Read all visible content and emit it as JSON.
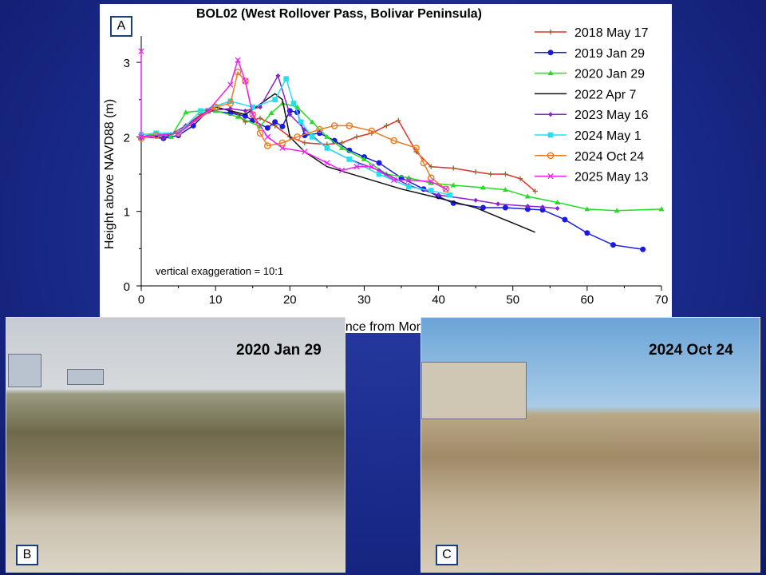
{
  "panels": {
    "a_label": "A",
    "b_label": "B",
    "c_label": "C"
  },
  "photos": {
    "b_caption": "2020 Jan 29",
    "c_caption": "2024 Oct 24"
  },
  "chart_data": {
    "type": "line",
    "title": "BOL02 (West Rollover Pass, Bolivar Peninsula)",
    "xlabel": "Distance from Monument (m)",
    "ylabel": "Height above NAVD88 (m)",
    "xlim": [
      0,
      70
    ],
    "ylim": [
      0,
      3.3
    ],
    "xticks": [
      0,
      10,
      20,
      30,
      40,
      50,
      60,
      70
    ],
    "yticks": [
      0,
      1,
      2,
      3
    ],
    "annotation": "vertical exaggeration = 10:1",
    "legend_position": "top-right",
    "series": [
      {
        "name": "2018 May 17",
        "color": "#e0302a",
        "marker": "plus",
        "x": [
          0,
          2,
          4,
          6,
          8,
          10,
          12,
          13,
          14,
          16,
          18,
          20,
          22,
          25,
          27,
          29,
          31,
          33,
          34.6,
          37,
          39,
          42,
          45,
          47,
          49,
          51,
          53
        ],
        "y": [
          2,
          2.02,
          2.03,
          2.15,
          2.3,
          2.4,
          2.35,
          2.3,
          2.2,
          2.25,
          2.15,
          2.0,
          1.92,
          1.9,
          1.92,
          2.0,
          2.05,
          2.15,
          2.22,
          1.8,
          1.6,
          1.58,
          1.53,
          1.5,
          1.5,
          1.44,
          1.27
        ]
      },
      {
        "name": "2019 Jan 29",
        "color": "#1a1ae0",
        "marker": "circle",
        "x": [
          0,
          2,
          3,
          5,
          7,
          9,
          12,
          14,
          15,
          17,
          18,
          19,
          20,
          21,
          22,
          24,
          26,
          28,
          30,
          32,
          35,
          38,
          40,
          42,
          46,
          49,
          52,
          54,
          57,
          60,
          63.5,
          67.5
        ],
        "y": [
          2,
          2.02,
          1.98,
          2.02,
          2.15,
          2.35,
          2.32,
          2.28,
          2.22,
          2.12,
          2.2,
          2.14,
          2.35,
          2.33,
          2.02,
          2.05,
          1.95,
          1.82,
          1.73,
          1.65,
          1.45,
          1.3,
          1.2,
          1.11,
          1.05,
          1.05,
          1.03,
          1.02,
          0.89,
          0.71,
          0.55,
          0.49
        ]
      },
      {
        "name": "2020 Jan 29",
        "color": "#22dd22",
        "marker": "triangle",
        "x": [
          0,
          2,
          4,
          6,
          8,
          10,
          13,
          16,
          17.5,
          19,
          21,
          23,
          25,
          27,
          30,
          33,
          36,
          39,
          42,
          46,
          49,
          52,
          56,
          60,
          64,
          70
        ],
        "y": [
          2,
          2.05,
          2.0,
          2.33,
          2.35,
          2.35,
          2.27,
          2.14,
          2.32,
          2.45,
          2.4,
          2.2,
          2.0,
          1.85,
          1.7,
          1.5,
          1.45,
          1.38,
          1.35,
          1.32,
          1.29,
          1.2,
          1.12,
          1.03,
          1.01,
          1.03
        ]
      },
      {
        "name": "2022 Apr 7",
        "color": "#111111",
        "marker": "none",
        "x": [
          0,
          5,
          10,
          14,
          18,
          19,
          20,
          22,
          25,
          30,
          35,
          40,
          45,
          53
        ],
        "y": [
          2,
          2.05,
          2.4,
          2.3,
          2.58,
          2.5,
          2.0,
          1.8,
          1.6,
          1.45,
          1.3,
          1.18,
          1.05,
          0.72
        ]
      },
      {
        "name": "2023 May 16",
        "color": "#8a22c8",
        "marker": "diamond",
        "x": [
          0,
          3,
          6,
          9,
          12,
          14,
          16,
          18.4,
          20,
          22,
          25,
          28,
          32,
          36,
          40,
          45,
          48,
          52,
          54,
          56
        ],
        "y": [
          2,
          1.98,
          2.15,
          2.35,
          2.38,
          2.35,
          2.4,
          2.82,
          2.3,
          2.1,
          1.85,
          1.7,
          1.55,
          1.35,
          1.22,
          1.15,
          1.1,
          1.07,
          1.06,
          1.04
        ]
      },
      {
        "name": "2024 May 1",
        "color": "#22e0f0",
        "marker": "square",
        "x": [
          0,
          2,
          5,
          8,
          12,
          15,
          18,
          19.5,
          20.5,
          21.5,
          23,
          25,
          28,
          32,
          36,
          39,
          41.5
        ],
        "y": [
          2.03,
          2.05,
          2.05,
          2.35,
          2.48,
          2.4,
          2.5,
          2.78,
          2.45,
          2.2,
          2.0,
          1.85,
          1.7,
          1.5,
          1.33,
          1.28,
          1.22
        ]
      },
      {
        "name": "2024 Oct 24",
        "color": "#f07820",
        "marker": "opencircle",
        "x": [
          0,
          2,
          5,
          10,
          12,
          13,
          14,
          15,
          16,
          17,
          19,
          21,
          24,
          26,
          28,
          31,
          34,
          37,
          38,
          39,
          41
        ],
        "y": [
          1.98,
          2.02,
          2.05,
          2.4,
          2.45,
          2.87,
          2.75,
          2.3,
          2.05,
          1.88,
          1.92,
          2.0,
          2.1,
          2.15,
          2.15,
          2.08,
          1.95,
          1.85,
          1.65,
          1.45,
          1.3
        ]
      },
      {
        "name": "2025 May 13",
        "color": "#ee22ee",
        "marker": "x",
        "x": [
          0,
          0,
          5,
          9,
          12,
          13,
          14,
          15,
          17,
          19,
          22,
          25,
          27,
          29,
          31,
          34,
          36,
          39,
          41
        ],
        "y": [
          3.15,
          2,
          2.05,
          2.35,
          2.7,
          3.03,
          2.75,
          2.3,
          2.0,
          1.85,
          1.8,
          1.65,
          1.55,
          1.6,
          1.6,
          1.42,
          1.42,
          1.4,
          1.3
        ]
      }
    ]
  }
}
